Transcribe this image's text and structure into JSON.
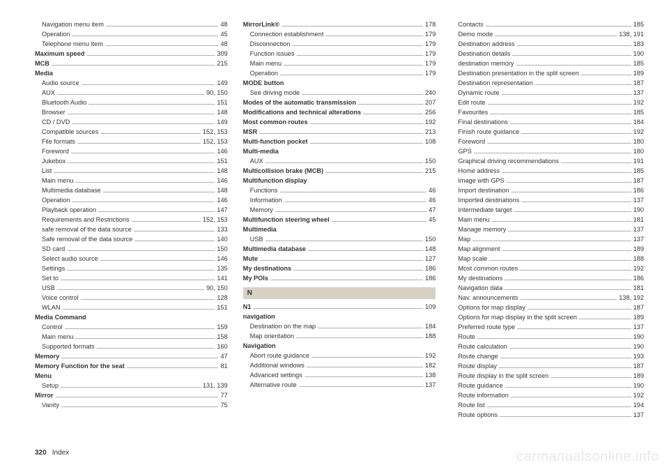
{
  "page_number": "320",
  "page_label": "Index",
  "watermark": "carmanualsonline.info",
  "section_heads": {
    "N": "N"
  },
  "columns": [
    [
      {
        "label": "Navigation menu item",
        "pg": "48",
        "indent": true
      },
      {
        "label": "Operation",
        "pg": "45",
        "indent": true
      },
      {
        "label": "Telephone menu item",
        "pg": "48",
        "indent": true
      },
      {
        "label": "Maximum speed",
        "pg": "309",
        "bold": true
      },
      {
        "label": "MCB",
        "pg": "215",
        "bold": true
      },
      {
        "label": "Media",
        "bold": true,
        "noline": true
      },
      {
        "label": "Audio source",
        "pg": "149",
        "indent": true
      },
      {
        "label": "AUX",
        "pg": "90, 150",
        "indent": true
      },
      {
        "label": "Bluetooth Audio",
        "pg": "151",
        "indent": true
      },
      {
        "label": "Browser",
        "pg": "148",
        "indent": true
      },
      {
        "label": "CD / DVD",
        "pg": "149",
        "indent": true
      },
      {
        "label": "Compatible sources",
        "pg": "152, 153",
        "indent": true
      },
      {
        "label": "File formats",
        "pg": "152, 153",
        "indent": true
      },
      {
        "label": "Foreword",
        "pg": "146",
        "indent": true
      },
      {
        "label": "Jukebox",
        "pg": "151",
        "indent": true
      },
      {
        "label": "List",
        "pg": "148",
        "indent": true
      },
      {
        "label": "Main menu",
        "pg": "146",
        "indent": true
      },
      {
        "label": "Multimedia database",
        "pg": "148",
        "indent": true
      },
      {
        "label": "Operation",
        "pg": "146",
        "indent": true
      },
      {
        "label": "Playback operation",
        "pg": "147",
        "indent": true
      },
      {
        "label": "Requirements and Restrictions",
        "pg": "152, 153",
        "indent": true
      },
      {
        "label": "safe removal of the data source",
        "pg": "133",
        "indent": true
      },
      {
        "label": "Safe removal of the data source",
        "pg": "140",
        "indent": true
      },
      {
        "label": "SD card",
        "pg": "150",
        "indent": true
      },
      {
        "label": "Select audio source",
        "pg": "146",
        "indent": true
      },
      {
        "label": "Settings",
        "pg": "135",
        "indent": true
      },
      {
        "label": "Set to",
        "pg": "141",
        "indent": true
      },
      {
        "label": "USB",
        "pg": "90, 150",
        "indent": true
      },
      {
        "label": "Voice control",
        "pg": "128",
        "indent": true
      },
      {
        "label": "WLAN",
        "pg": "151",
        "indent": true
      },
      {
        "label": "Media Command",
        "bold": true,
        "noline": true
      },
      {
        "label": "Control",
        "pg": "159",
        "indent": true
      },
      {
        "label": "Main menu",
        "pg": "158",
        "indent": true
      },
      {
        "label": "Supported formats",
        "pg": "160",
        "indent": true
      },
      {
        "label": "Memory",
        "pg": "47",
        "bold": true
      },
      {
        "label": "Memory Function for the seat",
        "pg": "81",
        "bold": true
      },
      {
        "label": "Menu",
        "bold": true,
        "noline": true
      },
      {
        "label": "Setup",
        "pg": "131, 139",
        "indent": true
      },
      {
        "label": "Mirror",
        "pg": "77",
        "bold": true
      },
      {
        "label": "Vanity",
        "pg": "75",
        "indent": true
      }
    ],
    [
      {
        "label": "MirrorLink®",
        "pg": "178",
        "bold": true
      },
      {
        "label": "Connection establishment",
        "pg": "179",
        "indent": true
      },
      {
        "label": "Disconnection",
        "pg": "179",
        "indent": true
      },
      {
        "label": "Function issues",
        "pg": "179",
        "indent": true
      },
      {
        "label": "Main menu",
        "pg": "179",
        "indent": true
      },
      {
        "label": "Operation",
        "pg": "179",
        "indent": true
      },
      {
        "label": "MODE button",
        "bold": true,
        "noline": true
      },
      {
        "label": "See driving mode",
        "pg": "240",
        "indent": true
      },
      {
        "label": "Modes of the automatic transmission",
        "pg": "207",
        "bold": true
      },
      {
        "label": "Modifications and technical alterations",
        "pg": "256",
        "bold": true
      },
      {
        "label": "Most common routes",
        "pg": "192",
        "bold": true
      },
      {
        "label": "MSR",
        "pg": "213",
        "bold": true
      },
      {
        "label": "Multi-function pocket",
        "pg": "108",
        "bold": true
      },
      {
        "label": "Multi-media",
        "bold": true,
        "noline": true
      },
      {
        "label": "AUX",
        "pg": "150",
        "indent": true
      },
      {
        "label": "Multicollision brake (MCB)",
        "pg": "215",
        "bold": true
      },
      {
        "label": "Multifunction display",
        "bold": true,
        "noline": true
      },
      {
        "label": "Functions",
        "pg": "46",
        "indent": true
      },
      {
        "label": "Information",
        "pg": "46",
        "indent": true
      },
      {
        "label": "Memory",
        "pg": "47",
        "indent": true
      },
      {
        "label": "Multifunction steering wheel",
        "pg": "45",
        "bold": true
      },
      {
        "label": "Multimedia",
        "bold": true,
        "noline": true
      },
      {
        "label": "USB",
        "pg": "150",
        "indent": true
      },
      {
        "label": "Multimedia database",
        "pg": "148",
        "bold": true
      },
      {
        "label": "Mute",
        "pg": "127",
        "bold": true
      },
      {
        "label": "My destinations",
        "pg": "186",
        "bold": true
      },
      {
        "label": "My POIs",
        "pg": "186",
        "bold": true
      },
      {
        "section": "N"
      },
      {
        "label": "N1",
        "pg": "109",
        "bold": true
      },
      {
        "label": "navigation",
        "bold": true,
        "noline": true
      },
      {
        "label": "Destination on the map",
        "pg": "184",
        "indent": true
      },
      {
        "label": "Map orientation",
        "pg": "188",
        "indent": true
      },
      {
        "label": "Navigation",
        "bold": true,
        "noline": true
      },
      {
        "label": "Abort route guidance",
        "pg": "192",
        "indent": true
      },
      {
        "label": "Additional windows",
        "pg": "182",
        "indent": true
      },
      {
        "label": "Advanced settings",
        "pg": "138",
        "indent": true
      },
      {
        "label": "Alternative route",
        "pg": "137",
        "indent": true
      }
    ],
    [
      {
        "label": "Contacts",
        "pg": "185",
        "indent": true
      },
      {
        "label": "Demo mode",
        "pg": "138, 191",
        "indent": true
      },
      {
        "label": "Destination address",
        "pg": "183",
        "indent": true
      },
      {
        "label": "Destination details",
        "pg": "190",
        "indent": true
      },
      {
        "label": "destination memory",
        "pg": "185",
        "indent": true
      },
      {
        "label": "Destination presentation in the split screen",
        "pg": "189",
        "indent": true
      },
      {
        "label": "Destination representation",
        "pg": "187",
        "indent": true
      },
      {
        "label": "Dynamic route",
        "pg": "137",
        "indent": true
      },
      {
        "label": "Edit route",
        "pg": "192",
        "indent": true
      },
      {
        "label": "Favourites",
        "pg": "185",
        "indent": true
      },
      {
        "label": "Final destinations",
        "pg": "184",
        "indent": true
      },
      {
        "label": "Finish route guidance",
        "pg": "192",
        "indent": true
      },
      {
        "label": "Foreword",
        "pg": "180",
        "indent": true
      },
      {
        "label": "GPS",
        "pg": "180",
        "indent": true
      },
      {
        "label": "Graphical driving recommendations",
        "pg": "191",
        "indent": true
      },
      {
        "label": "Home address",
        "pg": "185",
        "indent": true
      },
      {
        "label": "Image with GPS",
        "pg": "187",
        "indent": true
      },
      {
        "label": "Import destination",
        "pg": "186",
        "indent": true
      },
      {
        "label": "Imported destinations",
        "pg": "137",
        "indent": true
      },
      {
        "label": "Intermediate target",
        "pg": "190",
        "indent": true
      },
      {
        "label": "Main menu",
        "pg": "181",
        "indent": true
      },
      {
        "label": "Manage memory",
        "pg": "137",
        "indent": true
      },
      {
        "label": "Map",
        "pg": "137",
        "indent": true
      },
      {
        "label": "Map alignment",
        "pg": "189",
        "indent": true
      },
      {
        "label": "Map scale",
        "pg": "188",
        "indent": true
      },
      {
        "label": "Most common routes",
        "pg": "192",
        "indent": true
      },
      {
        "label": "My destinations",
        "pg": "186",
        "indent": true
      },
      {
        "label": "Navigation data",
        "pg": "181",
        "indent": true
      },
      {
        "label": "Nav. announcements",
        "pg": "138, 192",
        "indent": true
      },
      {
        "label": "Options for map display",
        "pg": "187",
        "indent": true
      },
      {
        "label": "Options for map display in the split screen",
        "pg": "189",
        "indent": true
      },
      {
        "label": "Preferred route type",
        "pg": "137",
        "indent": true
      },
      {
        "label": "Route",
        "pg": "190",
        "indent": true
      },
      {
        "label": "Route calculation",
        "pg": "190",
        "indent": true
      },
      {
        "label": "Route change",
        "pg": "193",
        "indent": true
      },
      {
        "label": "Route display",
        "pg": "187",
        "indent": true
      },
      {
        "label": "Route display in the split screen",
        "pg": "189",
        "indent": true
      },
      {
        "label": "Route guidance",
        "pg": "190",
        "indent": true
      },
      {
        "label": "Route information",
        "pg": "192",
        "indent": true
      },
      {
        "label": "Route list",
        "pg": "194",
        "indent": true
      },
      {
        "label": "Route options",
        "pg": "137",
        "indent": true
      }
    ]
  ]
}
